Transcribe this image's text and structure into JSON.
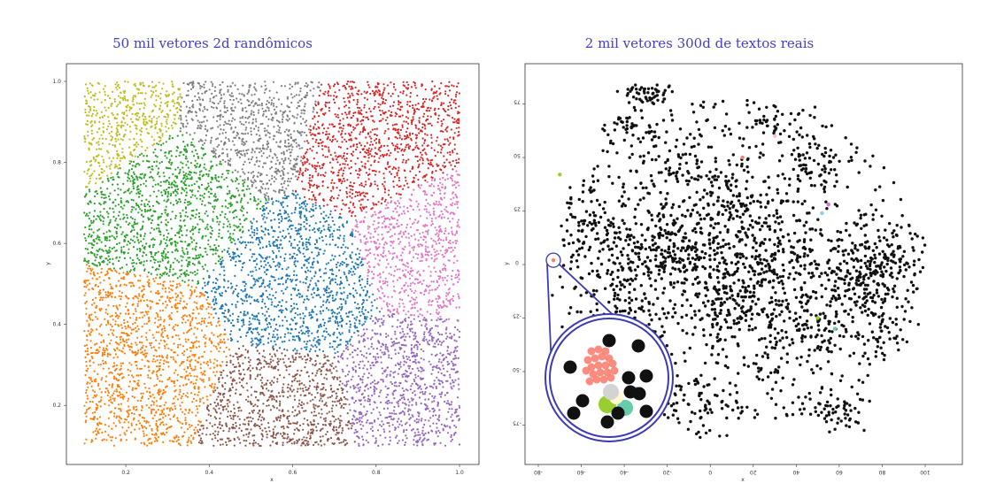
{
  "chart_data": [
    {
      "type": "scatter",
      "title": "50 mil vetores 2d randômicos",
      "xlabel": "x",
      "ylabel": "y",
      "xlim": [
        0.1,
        1.0
      ],
      "ylim": [
        0.1,
        1.0
      ],
      "xticks": [
        "0.2",
        "0.4",
        "0.6",
        "0.8",
        "1.0"
      ],
      "yticks": [
        "0.2",
        "0.4",
        "0.6",
        "0.8",
        "1.0"
      ],
      "n_points": 50000,
      "clusters": [
        {
          "color": "#bcbd22",
          "center": [
            0.18,
            0.93
          ]
        },
        {
          "color": "#7f7f7f",
          "center": [
            0.48,
            0.92
          ]
        },
        {
          "color": "#d62728",
          "center": [
            0.8,
            0.84
          ]
        },
        {
          "color": "#2ca02c",
          "center": [
            0.32,
            0.73
          ]
        },
        {
          "color": "#e377c2",
          "center": [
            0.92,
            0.6
          ]
        },
        {
          "color": "#1f77b4",
          "center": [
            0.62,
            0.5
          ]
        },
        {
          "color": "#ff7f0e",
          "center": [
            0.24,
            0.3
          ]
        },
        {
          "color": "#8c564b",
          "center": [
            0.58,
            0.17
          ]
        },
        {
          "color": "#9467bd",
          "center": [
            0.88,
            0.24
          ]
        }
      ]
    },
    {
      "type": "scatter",
      "title": "2 mil vetores 300d de textos reais",
      "xlabel": "x",
      "ylabel": "y",
      "xlim": [
        -80,
        105
      ],
      "ylim": [
        -85,
        85
      ],
      "xticks": [
        "-80",
        "-60",
        "-40",
        "-20",
        "0",
        "20",
        "40",
        "60",
        "80",
        "100"
      ],
      "yticks": [
        "75",
        "50",
        "25",
        "0",
        "-25",
        "-50",
        "-75"
      ],
      "n_points": 2000,
      "point_color": "#111111",
      "highlight_colors": [
        "#fa8072",
        "#d3d3d3",
        "#9acd32",
        "#66cdaa",
        "#fffacd",
        "#87ceeb",
        "#da70d6",
        "#ffc0cb"
      ],
      "inset": {
        "center": [
          -73,
          2
        ],
        "description_color": "#3b3bb3"
      }
    }
  ]
}
